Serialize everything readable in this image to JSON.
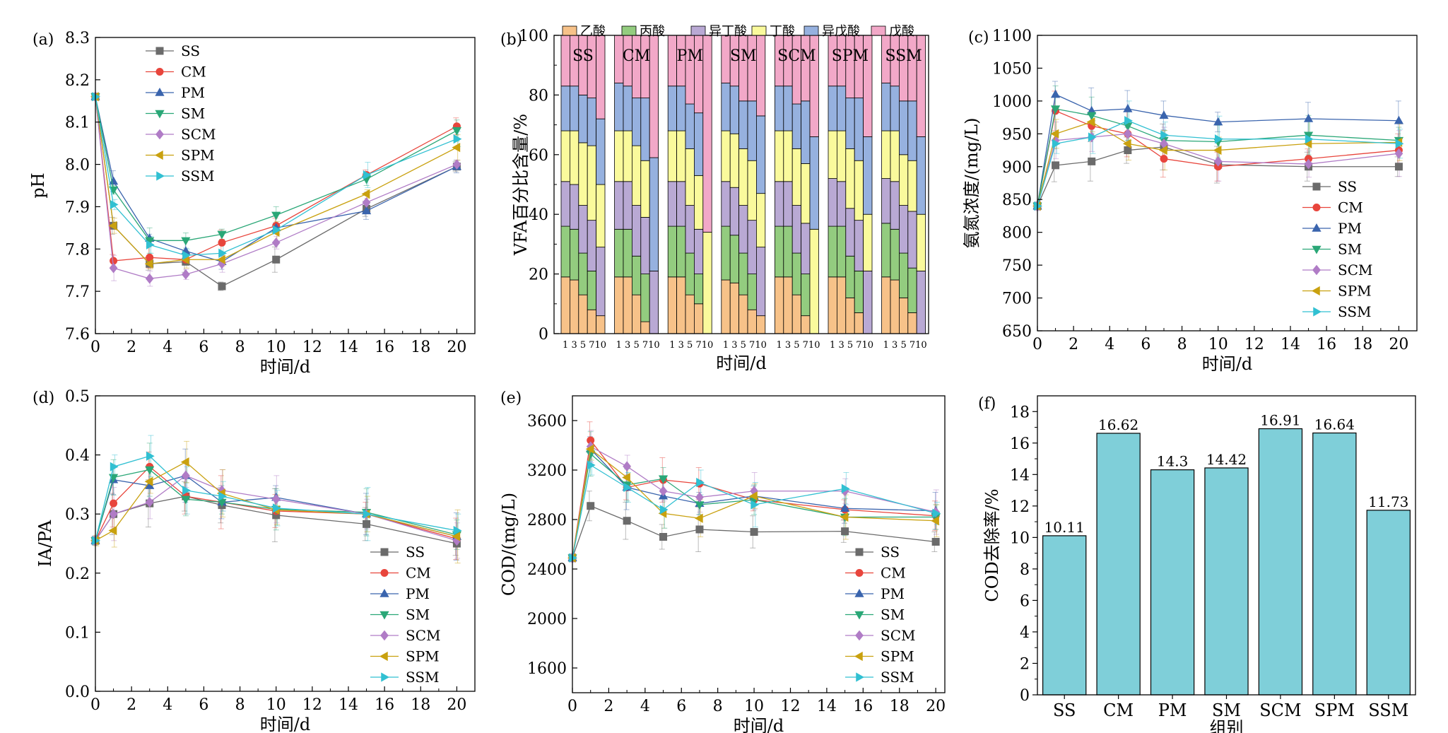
{
  "chart_data": [
    {
      "type": "line",
      "panel": "(a)",
      "title": "",
      "xlabel": "时间/d",
      "ylabel": "pH",
      "xlim": [
        0,
        21
      ],
      "ylim": [
        7.6,
        8.3
      ],
      "xticks": [
        0,
        2,
        4,
        6,
        8,
        10,
        12,
        14,
        16,
        18,
        20
      ],
      "yticks": [
        7.6,
        7.7,
        7.8,
        7.9,
        8.0,
        8.1,
        8.2,
        8.3
      ],
      "ytick_labels": [
        "7.6",
        "7.7",
        "7.8",
        "7.9",
        "8.0",
        "8.1",
        "8.2",
        "8.3"
      ],
      "legend_position": "top-left",
      "x": [
        0,
        1,
        3,
        5,
        7,
        10,
        15,
        20
      ],
      "series": [
        {
          "name": "SS",
          "values": [
            8.16,
            7.855,
            7.765,
            7.77,
            7.712,
            7.775,
            7.895,
            7.995
          ]
        },
        {
          "name": "CM",
          "values": [
            8.16,
            7.772,
            7.78,
            7.775,
            7.815,
            7.855,
            7.975,
            8.09
          ]
        },
        {
          "name": "PM",
          "values": [
            8.16,
            7.96,
            7.825,
            7.795,
            7.77,
            7.85,
            7.89,
            7.995
          ]
        },
        {
          "name": "SM",
          "values": [
            8.16,
            7.94,
            7.82,
            7.82,
            7.835,
            7.88,
            7.965,
            8.08
          ]
        },
        {
          "name": "SCM",
          "values": [
            8.16,
            7.755,
            7.73,
            7.74,
            7.765,
            7.815,
            7.91,
            8.0
          ]
        },
        {
          "name": "SPM",
          "values": [
            8.16,
            7.855,
            7.765,
            7.775,
            7.775,
            7.84,
            7.93,
            8.04
          ]
        },
        {
          "name": "SSM",
          "values": [
            8.16,
            7.905,
            7.81,
            7.785,
            7.79,
            7.845,
            7.975,
            8.06
          ]
        }
      ]
    },
    {
      "type": "bar",
      "stacked": true,
      "panel": "(b)",
      "title": "",
      "xlabel": "时间/d",
      "ylabel": "VFA百分比含量/%",
      "ylim": [
        0,
        100
      ],
      "yticks": [
        0,
        20,
        40,
        60,
        80,
        100
      ],
      "legend_position": "top",
      "groups": [
        "SS",
        "CM",
        "PM",
        "SM",
        "SCM",
        "SPM",
        "SSM"
      ],
      "days": [
        "1",
        "3",
        "5",
        "7",
        "10"
      ],
      "components": [
        "乙酸",
        "丙酸",
        "异丁酸",
        "丁酸",
        "异戊酸",
        "戊酸"
      ],
      "values": {
        "SS": [
          [
            19,
            17,
            15,
            17,
            15,
            17
          ],
          [
            18,
            17,
            15,
            18,
            15,
            17
          ],
          [
            13,
            14,
            16,
            21,
            16,
            20
          ],
          [
            8,
            13,
            17,
            25,
            16,
            21
          ],
          [
            6,
            0,
            23,
            21,
            22,
            28
          ]
        ],
        "CM": [
          [
            19,
            16,
            16,
            17,
            16,
            16
          ],
          [
            19,
            16,
            16,
            17,
            15,
            17
          ],
          [
            13,
            13,
            17,
            20,
            16,
            21
          ],
          [
            4,
            16,
            19,
            19,
            21,
            21
          ],
          [
            0,
            0,
            21,
            0,
            38,
            41
          ]
        ],
        "PM": [
          [
            19,
            17,
            15,
            17,
            15,
            17
          ],
          [
            19,
            17,
            15,
            17,
            15,
            17
          ],
          [
            13,
            14,
            16,
            19,
            15,
            23
          ],
          [
            10,
            10,
            15,
            18,
            21,
            26
          ],
          [
            0,
            0,
            0,
            34,
            0,
            66
          ]
        ],
        "SM": [
          [
            18,
            18,
            15,
            17,
            16,
            16
          ],
          [
            17,
            16,
            16,
            18,
            16,
            17
          ],
          [
            13,
            14,
            16,
            19,
            16,
            22
          ],
          [
            8,
            12,
            18,
            20,
            20,
            22
          ],
          [
            6,
            0,
            23,
            18,
            26,
            27
          ]
        ],
        "SCM": [
          [
            19,
            17,
            15,
            17,
            15,
            17
          ],
          [
            19,
            17,
            15,
            17,
            15,
            17
          ],
          [
            13,
            14,
            16,
            19,
            15,
            23
          ],
          [
            6,
            14,
            17,
            20,
            21,
            22
          ],
          [
            0,
            0,
            0,
            35,
            31,
            34
          ]
        ],
        "SPM": [
          [
            19,
            17,
            16,
            16,
            15,
            17
          ],
          [
            19,
            17,
            15,
            17,
            15,
            17
          ],
          [
            12,
            14,
            16,
            20,
            17,
            21
          ],
          [
            7,
            14,
            17,
            20,
            21,
            21
          ],
          [
            0,
            0,
            21,
            19,
            26,
            34
          ]
        ],
        "SSM": [
          [
            19,
            18,
            15,
            16,
            16,
            16
          ],
          [
            18,
            17,
            16,
            17,
            15,
            17
          ],
          [
            12,
            15,
            16,
            17,
            18,
            22
          ],
          [
            7,
            15,
            19,
            17,
            20,
            22
          ],
          [
            0,
            0,
            21,
            19,
            26,
            34
          ]
        ]
      }
    },
    {
      "type": "line",
      "panel": "(c)",
      "title": "",
      "xlabel": "时间/d",
      "ylabel": "氨氮浓度/(mg/L)",
      "xlim": [
        0,
        21
      ],
      "ylim": [
        650,
        1100
      ],
      "xticks": [
        0,
        2,
        4,
        6,
        8,
        10,
        12,
        14,
        16,
        18,
        20
      ],
      "yticks": [
        650,
        700,
        750,
        800,
        850,
        900,
        950,
        1000,
        1050,
        1100
      ],
      "ytick_labels": [
        "650",
        "700",
        "750",
        "800",
        "850",
        "900",
        "950",
        "1000",
        "1050",
        "1100"
      ],
      "legend_position": "bottom-right",
      "x": [
        0,
        1,
        3,
        5,
        7,
        10,
        15,
        20
      ],
      "series": [
        {
          "name": "SS",
          "values": [
            840,
            902,
            908,
            925,
            930,
            903,
            900,
            900
          ]
        },
        {
          "name": "CM",
          "values": [
            840,
            985,
            962,
            950,
            912,
            900,
            912,
            925
          ]
        },
        {
          "name": "PM",
          "values": [
            840,
            1010,
            985,
            988,
            978,
            968,
            973,
            970
          ]
        },
        {
          "name": "SM",
          "values": [
            840,
            988,
            978,
            962,
            940,
            938,
            948,
            940
          ]
        },
        {
          "name": "SCM",
          "values": [
            840,
            940,
            945,
            950,
            935,
            908,
            904,
            920
          ]
        },
        {
          "name": "SPM",
          "values": [
            840,
            950,
            968,
            935,
            925,
            925,
            935,
            937
          ]
        },
        {
          "name": "SSM",
          "values": [
            840,
            935,
            945,
            970,
            948,
            942,
            942,
            935
          ]
        }
      ]
    },
    {
      "type": "line",
      "panel": "(d)",
      "title": "",
      "xlabel": "时间/d",
      "ylabel": "IA/PA",
      "xlim": [
        0,
        21
      ],
      "ylim": [
        0,
        0.5
      ],
      "xticks": [
        0,
        2,
        4,
        6,
        8,
        10,
        12,
        14,
        16,
        18,
        20
      ],
      "yticks": [
        0,
        0.1,
        0.2,
        0.3,
        0.4,
        0.5
      ],
      "ytick_labels": [
        "0.0",
        "0.1",
        "0.2",
        "0.3",
        "0.4",
        "0.5"
      ],
      "legend_position": "bottom-right",
      "x": [
        0,
        1,
        3,
        5,
        7,
        10,
        15,
        20
      ],
      "series": [
        {
          "name": "SS",
          "values": [
            0.255,
            0.3,
            0.318,
            0.33,
            0.315,
            0.298,
            0.283,
            0.25
          ]
        },
        {
          "name": "CM",
          "values": [
            0.255,
            0.318,
            0.38,
            0.33,
            0.32,
            0.305,
            0.3,
            0.258
          ]
        },
        {
          "name": "PM",
          "values": [
            0.255,
            0.358,
            0.348,
            0.365,
            0.32,
            0.328,
            0.3,
            0.262
          ]
        },
        {
          "name": "SM",
          "values": [
            0.255,
            0.362,
            0.375,
            0.325,
            0.32,
            0.308,
            0.303,
            0.265
          ]
        },
        {
          "name": "SCM",
          "values": [
            0.255,
            0.3,
            0.32,
            0.365,
            0.34,
            0.325,
            0.3,
            0.255
          ]
        },
        {
          "name": "SPM",
          "values": [
            0.255,
            0.272,
            0.355,
            0.388,
            0.335,
            0.307,
            0.3,
            0.262
          ]
        },
        {
          "name": "SSM",
          "values": [
            0.255,
            0.38,
            0.398,
            0.34,
            0.33,
            0.31,
            0.3,
            0.272
          ]
        }
      ]
    },
    {
      "type": "line",
      "panel": "(e)",
      "title": "",
      "xlabel": "时间/d",
      "ylabel": "COD/(mg/L)",
      "xlim": [
        0,
        20.5
      ],
      "ylim": [
        1400,
        3800
      ],
      "xticks": [
        0,
        2,
        4,
        6,
        8,
        10,
        12,
        14,
        16,
        18,
        20
      ],
      "yticks": [
        1600,
        2000,
        2400,
        2800,
        3200,
        3600
      ],
      "ytick_labels": [
        "1600",
        "2000",
        "2400",
        "2800",
        "3200",
        "3600"
      ],
      "legend_position": "bottom-right",
      "x": [
        0,
        1,
        3,
        5,
        7,
        10,
        15,
        20
      ],
      "series": [
        {
          "name": "SS",
          "values": [
            2490,
            2910,
            2790,
            2660,
            2720,
            2700,
            2705,
            2620
          ]
        },
        {
          "name": "CM",
          "values": [
            2490,
            3440,
            3060,
            3120,
            3090,
            2960,
            2880,
            2830
          ]
        },
        {
          "name": "PM",
          "values": [
            2490,
            3370,
            3060,
            2990,
            2930,
            2990,
            2890,
            2870
          ]
        },
        {
          "name": "SM",
          "values": [
            2490,
            3330,
            3080,
            3130,
            2920,
            2960,
            2820,
            2820
          ]
        },
        {
          "name": "SCM",
          "values": [
            2490,
            3390,
            3230,
            3030,
            2980,
            3030,
            3030,
            2860
          ]
        },
        {
          "name": "SPM",
          "values": [
            2490,
            3370,
            3140,
            2850,
            2810,
            2990,
            2820,
            2790
          ]
        },
        {
          "name": "SSM",
          "values": [
            2490,
            3240,
            3060,
            2880,
            3100,
            2920,
            3050,
            2850
          ]
        }
      ]
    },
    {
      "type": "bar",
      "panel": "(f)",
      "title": "",
      "xlabel": "组别",
      "ylabel": "COD去除率/%",
      "ylim": [
        0,
        19
      ],
      "yticks": [
        0,
        2,
        4,
        6,
        8,
        10,
        12,
        14,
        16,
        18
      ],
      "categories": [
        "SS",
        "CM",
        "PM",
        "SM",
        "SCM",
        "SPM",
        "SSM"
      ],
      "values": [
        10.11,
        16.62,
        14.3,
        14.42,
        16.91,
        16.64,
        11.73
      ],
      "data_labels": [
        "10.11",
        "16.62",
        "14.3",
        "14.42",
        "16.91",
        "16.64",
        "11.73"
      ]
    }
  ],
  "styles": {
    "series_colors": {
      "SS": "#6b6b6b",
      "CM": "#e8453c",
      "PM": "#3a64ad",
      "SM": "#2aa777",
      "SCM": "#b07cc6",
      "SPM": "#c9a10f",
      "SSM": "#31c0d2"
    },
    "markers": {
      "SS": "square",
      "CM": "circle",
      "PM": "triangle-up",
      "SM": "triangle-down",
      "SCM": "diamond",
      "SPM": "triangle-left",
      "SSM": "triangle-right"
    },
    "component_colors": [
      "#f7c289",
      "#93cc7f",
      "#b9a9d4",
      "#fafa9c",
      "#96b1df",
      "#f2a8c8"
    ],
    "bar_fill": "#7fcfd9"
  }
}
